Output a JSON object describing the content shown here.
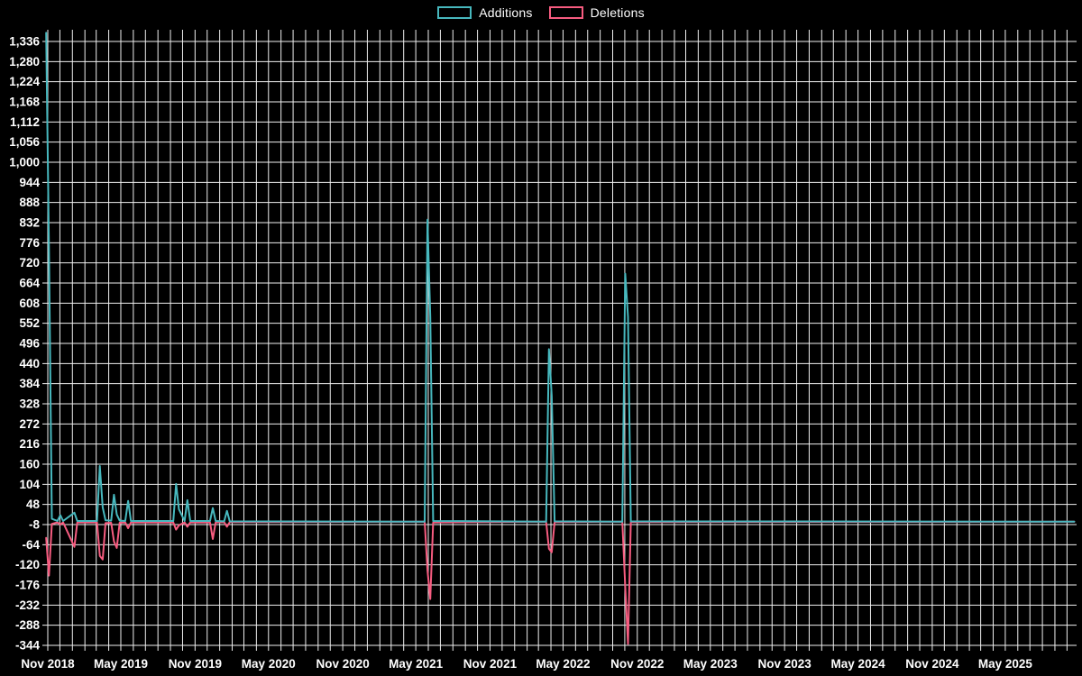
{
  "colors": {
    "background": "#000000",
    "grid": "#efefef",
    "text": "#ffffff",
    "additions": "#47b8be",
    "deletions": "#f75c80"
  },
  "legend": {
    "items": [
      {
        "label": "Additions",
        "color": "#47b8be"
      },
      {
        "label": "Deletions",
        "color": "#f75c80"
      }
    ]
  },
  "chart_data": {
    "type": "line",
    "title": "",
    "legend_position": "top-center",
    "grid": true,
    "x_axis": {
      "start_month": "2018-11",
      "months_total": 84,
      "label_every_months": 6,
      "tick_labels": [
        "Nov 2018",
        "May 2019",
        "Nov 2019",
        "May 2020",
        "Nov 2020",
        "May 2021",
        "Nov 2021",
        "May 2022",
        "Nov 2022",
        "May 2023",
        "Nov 2023",
        "May 2024",
        "Nov 2024",
        "May 2025"
      ]
    },
    "y_axis": {
      "min": -344,
      "max": 1336,
      "step": 56,
      "tick_values": [
        1336,
        1280,
        1224,
        1168,
        1112,
        1056,
        1000,
        944,
        888,
        832,
        776,
        720,
        664,
        608,
        552,
        496,
        440,
        384,
        328,
        272,
        216,
        160,
        104,
        48,
        -8,
        -64,
        -120,
        -176,
        -232,
        -288,
        -344
      ],
      "tick_labels": [
        "1,336",
        "1,280",
        "1,224",
        "1,168",
        "1,112",
        "1,056",
        "1,000",
        "944",
        "888",
        "832",
        "776",
        "720",
        "664",
        "608",
        "552",
        "496",
        "440",
        "384",
        "328",
        "272",
        "216",
        "160",
        "104",
        "48",
        "-8",
        "-64",
        "-120",
        "-176",
        "-232",
        "-288",
        "-344"
      ]
    },
    "series": [
      {
        "name": "Additions",
        "color": "#47b8be",
        "points": [
          [
            "2018-10-28",
            1360
          ],
          [
            "2018-11-04",
            760
          ],
          [
            "2018-11-11",
            8
          ],
          [
            "2018-11-25",
            2
          ],
          [
            "2018-12-02",
            18
          ],
          [
            "2018-12-09",
            2
          ],
          [
            "2019-01-06",
            25
          ],
          [
            "2019-01-13",
            2
          ],
          [
            "2019-03-03",
            2
          ],
          [
            "2019-03-10",
            155
          ],
          [
            "2019-03-17",
            40
          ],
          [
            "2019-03-24",
            4
          ],
          [
            "2019-04-07",
            3
          ],
          [
            "2019-04-14",
            75
          ],
          [
            "2019-04-21",
            20
          ],
          [
            "2019-04-28",
            3
          ],
          [
            "2019-05-12",
            2
          ],
          [
            "2019-05-19",
            58
          ],
          [
            "2019-05-26",
            2
          ],
          [
            "2019-09-08",
            2
          ],
          [
            "2019-09-15",
            105
          ],
          [
            "2019-09-22",
            35
          ],
          [
            "2019-10-06",
            2
          ],
          [
            "2019-10-13",
            60
          ],
          [
            "2019-10-20",
            2
          ],
          [
            "2019-12-08",
            2
          ],
          [
            "2019-12-15",
            38
          ],
          [
            "2019-12-22",
            2
          ],
          [
            "2020-01-12",
            1
          ],
          [
            "2020-01-19",
            30
          ],
          [
            "2020-01-26",
            1
          ],
          [
            "2021-05-23",
            0
          ],
          [
            "2021-05-30",
            840
          ],
          [
            "2021-06-06",
            570
          ],
          [
            "2021-06-13",
            2
          ],
          [
            "2022-03-20",
            0
          ],
          [
            "2022-03-27",
            480
          ],
          [
            "2022-04-03",
            350
          ],
          [
            "2022-04-10",
            1
          ],
          [
            "2022-09-25",
            0
          ],
          [
            "2022-10-02",
            690
          ],
          [
            "2022-10-09",
            570
          ],
          [
            "2022-10-16",
            1
          ],
          [
            "2025-10-19",
            0
          ]
        ]
      },
      {
        "name": "Deletions",
        "color": "#f75c80",
        "points": [
          [
            "2018-10-28",
            -45
          ],
          [
            "2018-11-04",
            -150
          ],
          [
            "2018-11-11",
            -6
          ],
          [
            "2018-11-25",
            -2
          ],
          [
            "2018-12-02",
            -8
          ],
          [
            "2018-12-09",
            -2
          ],
          [
            "2019-01-06",
            -70
          ],
          [
            "2019-01-13",
            -2
          ],
          [
            "2019-03-03",
            -2
          ],
          [
            "2019-03-10",
            -95
          ],
          [
            "2019-03-17",
            -105
          ],
          [
            "2019-03-24",
            -4
          ],
          [
            "2019-04-07",
            -3
          ],
          [
            "2019-04-14",
            -55
          ],
          [
            "2019-04-21",
            -73
          ],
          [
            "2019-04-28",
            -3
          ],
          [
            "2019-05-12",
            -2
          ],
          [
            "2019-05-19",
            -18
          ],
          [
            "2019-05-26",
            -2
          ],
          [
            "2019-09-08",
            -2
          ],
          [
            "2019-09-15",
            -22
          ],
          [
            "2019-09-22",
            -10
          ],
          [
            "2019-10-06",
            -2
          ],
          [
            "2019-10-13",
            -14
          ],
          [
            "2019-10-20",
            -2
          ],
          [
            "2019-12-08",
            -2
          ],
          [
            "2019-12-15",
            -48
          ],
          [
            "2019-12-22",
            -2
          ],
          [
            "2020-01-12",
            -1
          ],
          [
            "2020-01-19",
            -14
          ],
          [
            "2020-01-26",
            -1
          ],
          [
            "2021-05-23",
            0
          ],
          [
            "2021-05-30",
            -135
          ],
          [
            "2021-06-06",
            -215
          ],
          [
            "2021-06-13",
            -2
          ],
          [
            "2022-03-20",
            0
          ],
          [
            "2022-03-27",
            -75
          ],
          [
            "2022-04-03",
            -85
          ],
          [
            "2022-04-10",
            -1
          ],
          [
            "2022-09-25",
            0
          ],
          [
            "2022-10-02",
            -180
          ],
          [
            "2022-10-09",
            -340
          ],
          [
            "2022-10-16",
            -1
          ],
          [
            "2025-10-19",
            0
          ]
        ]
      }
    ]
  }
}
